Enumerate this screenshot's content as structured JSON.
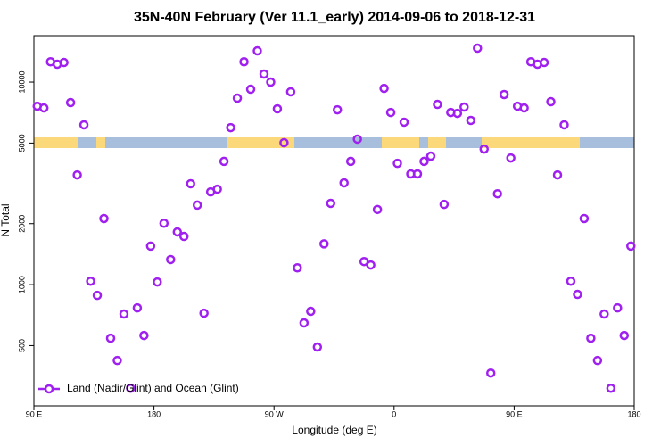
{
  "chart_data": {
    "type": "scatter",
    "title": "35N-40N February (Ver 11.1_early)   2014-09-06 to 2018-12-31",
    "x_label": "Longitude (deg E)",
    "y_label": "N Total",
    "yscale": "log",
    "xlim": [
      90,
      540
    ],
    "ylim": [
      252,
      16950
    ],
    "xticks": [
      {
        "value": 90,
        "label": "90 E"
      },
      {
        "value": 180,
        "label": "180"
      },
      {
        "value": 270,
        "label": "90 W"
      },
      {
        "value": 360,
        "label": "0"
      },
      {
        "value": 450,
        "label": "90 E"
      },
      {
        "value": 540,
        "label": "180"
      }
    ],
    "yticks": [
      500,
      1000,
      2000,
      5000,
      10000
    ],
    "legend_position": "bottom-left",
    "x": [
      92.5,
      97.5,
      102.5,
      107.5,
      112.5,
      117.5,
      122.5,
      127.5,
      132.5,
      137.5,
      142.5,
      147.5,
      152.5,
      157.5,
      162.5,
      167.5,
      172.5,
      177.5,
      182.5,
      187.5,
      192.5,
      197.5,
      202.5,
      207.5,
      212.5,
      217.5,
      222.5,
      227.5,
      232.5,
      237.5,
      242.5,
      247.5,
      252.5,
      257.5,
      262.5,
      267.5,
      272.5,
      277.5,
      282.5,
      287.5,
      292.5,
      297.5,
      302.5,
      307.5,
      312.5,
      317.5,
      322.5,
      327.5,
      332.5,
      337.5,
      342.5,
      347.5,
      352.5,
      357.5,
      362.5,
      367.5,
      372.5,
      377.5,
      382.5,
      387.5,
      392.5,
      397.5,
      402.5,
      407.5,
      412.5,
      417.5,
      422.5,
      427.5,
      432.5,
      437.5,
      442.5,
      447.5,
      452.5,
      457.5,
      462.5,
      467.5,
      472.5,
      477.5,
      482.5,
      487.5,
      492.5,
      497.5,
      502.5,
      507.5,
      512.5,
      517.5,
      522.5,
      527.5,
      532.5,
      537.5
    ],
    "series": [
      {
        "name": "Land (Nadir/Glint) and Ocean (Glint)",
        "color": "#a020f0",
        "values": [
          7600,
          7450,
          12600,
          12250,
          12500,
          7920,
          3480,
          6150,
          1040,
          885,
          2120,
          544,
          422,
          716,
          308,
          768,
          561,
          1550,
          1030,
          2010,
          1330,
          1820,
          1730,
          3150,
          2470,
          723,
          2870,
          2960,
          4060,
          5960,
          8330,
          12600,
          9220,
          14260,
          10960,
          10000,
          7380,
          5020,
          8950,
          1210,
          647,
          738,
          492,
          1590,
          2520,
          7300,
          3180,
          4060,
          5230,
          1300,
          1250,
          2350,
          9310,
          7080,
          3970,
          6340,
          3520,
          3520,
          4060,
          4310,
          7760,
          2490,
          7080,
          7010,
          7530,
          6470,
          14700,
          4670,
          366,
          2810,
          8680,
          4220,
          7600,
          7450,
          12600,
          12250,
          12500,
          8000,
          3480,
          6150,
          1040,
          895,
          2120,
          544,
          422,
          716,
          308,
          768,
          561,
          1550
        ]
      }
    ]
  }
}
